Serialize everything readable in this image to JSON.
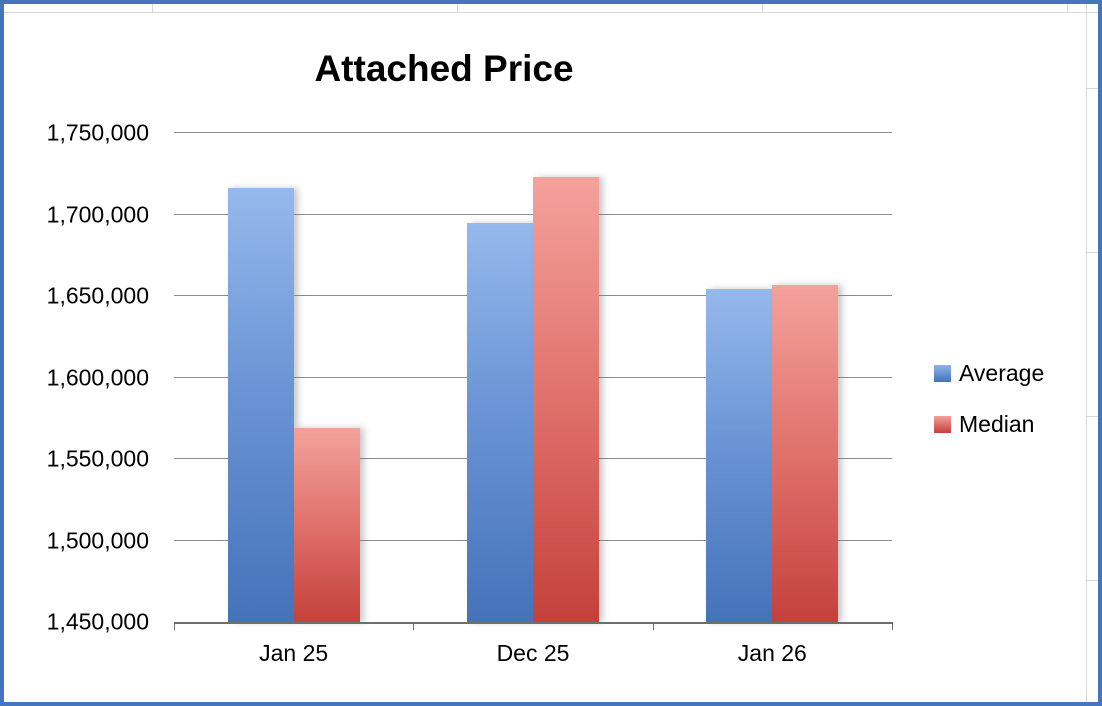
{
  "frame": {
    "border_color": "#4576bd"
  },
  "chart_data": {
    "type": "bar",
    "title": "Attached Price",
    "categories": [
      "Jan 25",
      "Dec 25",
      "Jan 26"
    ],
    "series": [
      {
        "name": "Average",
        "color": "#4573b9",
        "color_light": "#8fb4e8",
        "values": [
          1716000,
          1695000,
          1654000
        ]
      },
      {
        "name": "Median",
        "color": "#c4413c",
        "color_light": "#f2a09a",
        "values": [
          1569000,
          1723000,
          1657000
        ]
      }
    ],
    "ylim": [
      1450000,
      1750000
    ],
    "ytick_step": 50000,
    "ytick_labels": [
      "1,450,000",
      "1,500,000",
      "1,550,000",
      "1,600,000",
      "1,650,000",
      "1,700,000",
      "1,750,000"
    ],
    "xlabel": "",
    "ylabel": "",
    "grid": true,
    "legend_position": "right"
  }
}
